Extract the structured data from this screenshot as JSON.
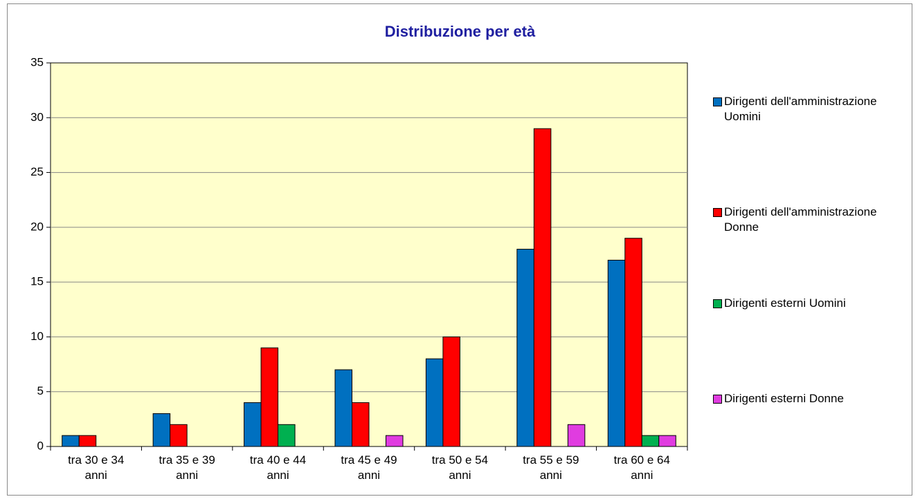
{
  "chart_data": {
    "type": "bar",
    "title": "Distribuzione per età",
    "categories": [
      "tra 30 e 34 anni",
      "tra 35 e 39 anni",
      "tra 40 e 44 anni",
      "tra 45 e 49 anni",
      "tra 50 e 54 anni",
      "tra 55 e 59 anni",
      "tra 60 e 64 anni"
    ],
    "series": [
      {
        "name": "Dirigenti dell'amministrazione Uomini",
        "color": "#0070c0",
        "values": [
          1,
          3,
          4,
          7,
          8,
          18,
          17
        ]
      },
      {
        "name": "Dirigenti dell'amministrazione Donne",
        "color": "#ff0000",
        "values": [
          1,
          2,
          9,
          4,
          10,
          29,
          19
        ]
      },
      {
        "name": "Dirigenti esterni Uomini",
        "color": "#00b050",
        "values": [
          0,
          0,
          2,
          0,
          0,
          0,
          1
        ]
      },
      {
        "name": "Dirigenti esterni Donne",
        "color": "#e03ce0",
        "values": [
          0,
          0,
          0,
          1,
          0,
          2,
          1
        ]
      }
    ],
    "ylim": [
      0,
      35
    ],
    "yticks": [
      0,
      5,
      10,
      15,
      20,
      25,
      30,
      35
    ],
    "grid": true,
    "legend": "right"
  }
}
